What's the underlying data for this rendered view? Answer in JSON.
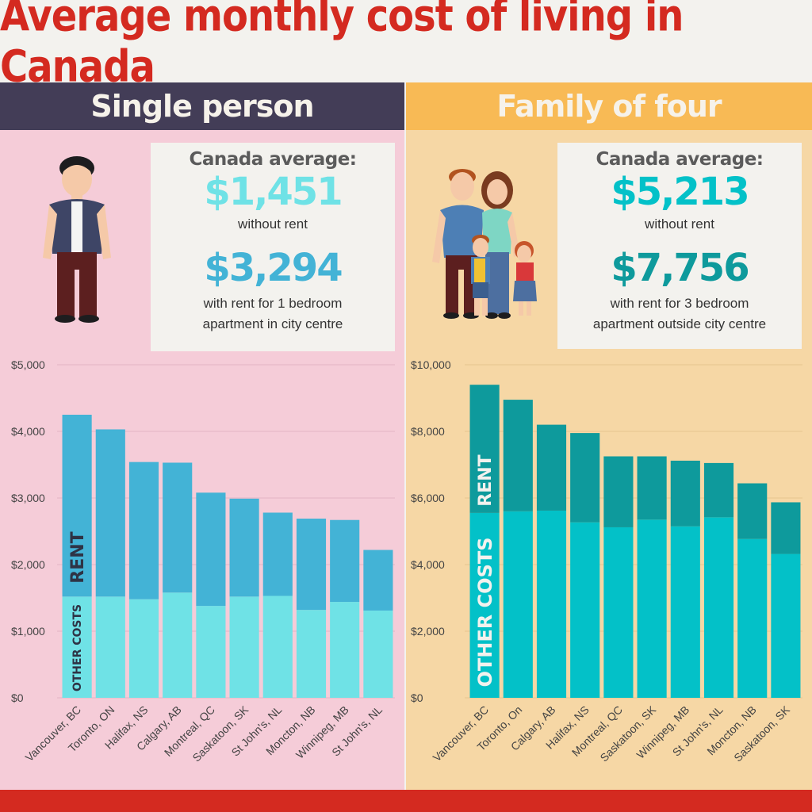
{
  "title": "Average monthly cost of living in Canada",
  "left": {
    "band": "Single person",
    "card": {
      "heading": "Canada average:",
      "without_rent_value": "$1,451",
      "without_rent_label": "without rent",
      "with_rent_value": "$3,294",
      "with_rent_label_1": "with rent for 1 bedroom",
      "with_rent_label_2": "apartment in city centre"
    }
  },
  "right": {
    "band": "Family of four",
    "card": {
      "heading": "Canada average:",
      "without_rent_value": "$5,213",
      "without_rent_label": "without rent",
      "with_rent_value": "$7,756",
      "with_rent_label_1": "with rent for 3 bedroom",
      "with_rent_label_2": "apartment outside city centre"
    }
  },
  "colors": {
    "title_red": "#d42a20",
    "single_rent": "#43b3d6",
    "single_other": "#6fe2e6",
    "family_rent": "#0e9a9c",
    "family_other": "#03c1c8"
  },
  "chart_data": [
    {
      "type": "bar",
      "stacked": true,
      "title": "Single person",
      "categories": [
        "Vancouver, BC",
        "Toronto, ON",
        "Halifax, NS",
        "Calgary, AB",
        "Montreal, QC",
        "Saskatoon, SK",
        "St John's, NL",
        "Moncton, NB",
        "Winnipeg, MB",
        "St John's, NL"
      ],
      "series": [
        {
          "name": "OTHER COSTS",
          "values": [
            1520,
            1520,
            1480,
            1580,
            1380,
            1520,
            1530,
            1320,
            1440,
            1310
          ]
        },
        {
          "name": "RENT",
          "values": [
            2730,
            2510,
            2060,
            1950,
            1700,
            1470,
            1250,
            1370,
            1230,
            910
          ]
        }
      ],
      "ylim": [
        0,
        5000
      ],
      "yticks": [
        "$0",
        "$1,000",
        "$2,000",
        "$3,000",
        "$4,000",
        "$5,000"
      ],
      "xlabel": "",
      "ylabel": ""
    },
    {
      "type": "bar",
      "stacked": true,
      "title": "Family of four",
      "categories": [
        "Vancouver, BC",
        "Toronto, On",
        "Calgary, AB",
        "Halifax, NS",
        "Montreal, QC",
        "Saskatoon, SK",
        "Winnipeg, MB",
        "St John's, NL",
        "Moncton, NB",
        "Saskatoon, SK"
      ],
      "series": [
        {
          "name": "OTHER COSTS",
          "values": [
            5550,
            5600,
            5620,
            5270,
            5120,
            5350,
            5150,
            5420,
            4770,
            4320
          ]
        },
        {
          "name": "RENT",
          "values": [
            3850,
            3350,
            2580,
            2680,
            2130,
            1900,
            1970,
            1630,
            1670,
            1550
          ]
        }
      ],
      "ylim": [
        0,
        10000
      ],
      "yticks": [
        "$0",
        "$2,000",
        "$4,000",
        "$6,000",
        "$8,000",
        "$10,000"
      ],
      "xlabel": "",
      "ylabel": ""
    }
  ]
}
